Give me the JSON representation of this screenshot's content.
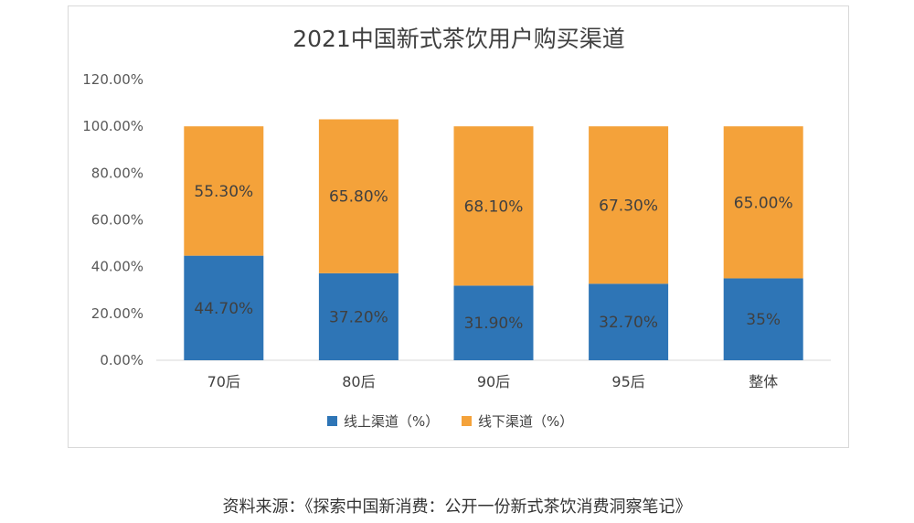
{
  "source_note": "资料来源：《探索中国新消费：公开一份新式茶饮消费洞察笔记》",
  "chart_data": {
    "type": "bar",
    "stacked": true,
    "title": "2021中国新式茶饮用户购买渠道",
    "categories": [
      "70后",
      "80后",
      "90后",
      "95后",
      "整体"
    ],
    "series": [
      {
        "name": "线上渠道（%）",
        "color": "#2e75b6",
        "values": [
          44.7,
          37.2,
          31.9,
          32.7,
          35
        ],
        "labels": [
          "44.70%",
          "37.20%",
          "31.90%",
          "32.70%",
          "35%"
        ]
      },
      {
        "name": "线下渠道（%）",
        "color": "#f4a23a",
        "values": [
          55.3,
          65.8,
          68.1,
          67.3,
          65.0
        ],
        "labels": [
          "55.30%",
          "65.80%",
          "68.10%",
          "67.30%",
          "65.00%"
        ]
      }
    ],
    "yticks": [
      "0.00%",
      "20.00%",
      "40.00%",
      "60.00%",
      "80.00%",
      "100.00%",
      "120.00%"
    ],
    "ylim": [
      0,
      120
    ],
    "grid": false,
    "legend_position": "bottom"
  }
}
